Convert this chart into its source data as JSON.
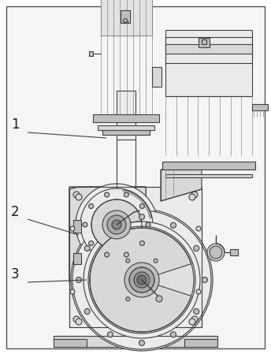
{
  "bg_color": "#ffffff",
  "line_color": "#404040",
  "label_1": "1",
  "label_2": "2",
  "label_3": "3",
  "figsize": [
    3.44,
    4.49
  ],
  "dpi": 100
}
